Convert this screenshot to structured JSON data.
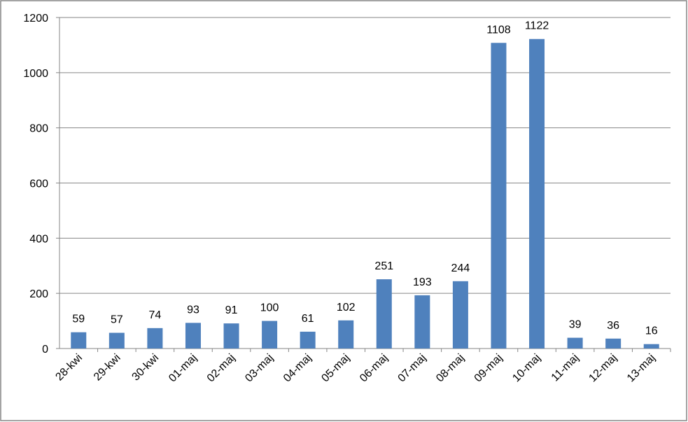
{
  "chart_data": {
    "type": "bar",
    "categories": [
      "28-kwi",
      "29-kwi",
      "30-kwi",
      "01-maj",
      "02-maj",
      "03-maj",
      "04-maj",
      "05-maj",
      "06-maj",
      "07-maj",
      "08-maj",
      "09-maj",
      "10-maj",
      "11-maj",
      "12-maj",
      "13-maj"
    ],
    "values": [
      59,
      57,
      74,
      93,
      91,
      100,
      61,
      102,
      251,
      193,
      244,
      1108,
      1122,
      39,
      36,
      16
    ],
    "color": "#4f81bd",
    "ylim": [
      0,
      1200
    ],
    "yticks": [
      0,
      200,
      400,
      600,
      800,
      1000,
      1200
    ],
    "grid": true
  }
}
